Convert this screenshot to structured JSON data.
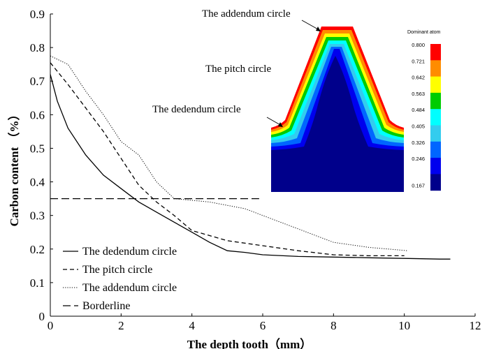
{
  "chart_data": {
    "type": "line",
    "xlabel": "The depth tooth（mm）",
    "ylabel": "Carbon content （%）",
    "xlim": [
      0,
      12
    ],
    "ylim": [
      0,
      0.9
    ],
    "xticks": [
      "0",
      "2",
      "4",
      "6",
      "8",
      "10",
      "12"
    ],
    "yticks": [
      "0",
      "0.1",
      "0.2",
      "0.3",
      "0.4",
      "0.5",
      "0.6",
      "0.7",
      "0.8",
      "0.9"
    ],
    "grid": false,
    "legend_position": "bottom-left",
    "series": [
      {
        "name": "The dedendum circle",
        "style": "solid",
        "x": [
          0,
          0.2,
          0.5,
          1,
          1.5,
          2,
          2.5,
          3,
          3.5,
          4,
          4.5,
          5,
          5.5,
          6,
          7,
          8,
          9,
          10,
          11,
          11.3
        ],
        "y": [
          0.72,
          0.64,
          0.56,
          0.48,
          0.42,
          0.38,
          0.34,
          0.31,
          0.28,
          0.25,
          0.22,
          0.195,
          0.19,
          0.183,
          0.178,
          0.176,
          0.174,
          0.172,
          0.17,
          0.17
        ]
      },
      {
        "name": "The pitch circle",
        "style": "dashed",
        "x": [
          0,
          0.5,
          1,
          1.5,
          2,
          2.5,
          3,
          3.5,
          4,
          4.5,
          5,
          6,
          7,
          8,
          9,
          10
        ],
        "y": [
          0.755,
          0.69,
          0.62,
          0.55,
          0.47,
          0.39,
          0.34,
          0.3,
          0.255,
          0.24,
          0.225,
          0.21,
          0.195,
          0.183,
          0.18,
          0.18
        ]
      },
      {
        "name": "The addendum circle",
        "style": "dotted",
        "x": [
          0,
          0.5,
          1,
          1.5,
          2,
          2.5,
          3,
          3.5,
          4,
          4.5,
          5,
          5.5,
          6,
          7,
          8,
          9,
          10.1
        ],
        "y": [
          0.775,
          0.75,
          0.67,
          0.6,
          0.52,
          0.48,
          0.4,
          0.35,
          0.345,
          0.34,
          0.33,
          0.32,
          0.3,
          0.26,
          0.22,
          0.205,
          0.195
        ]
      },
      {
        "name": "Borderline",
        "style": "longdash",
        "x": [
          0,
          5.9
        ],
        "y": [
          0.35,
          0.35
        ]
      }
    ],
    "annotations": [
      "The addendum circle",
      "The pitch circle",
      "The dedendum circle"
    ],
    "colorbar": {
      "title": "Dominant atom",
      "values": [
        "0.800",
        "0.721",
        "0.642",
        "0.563",
        "0.484",
        "0.405",
        "0.326",
        "0.246",
        "0.167"
      ],
      "colors": [
        "#ff0000",
        "#ff8c00",
        "#ffff00",
        "#00cc00",
        "#00ffff",
        "#33ccee",
        "#0066ff",
        "#0000ee",
        "#00008b"
      ]
    }
  }
}
